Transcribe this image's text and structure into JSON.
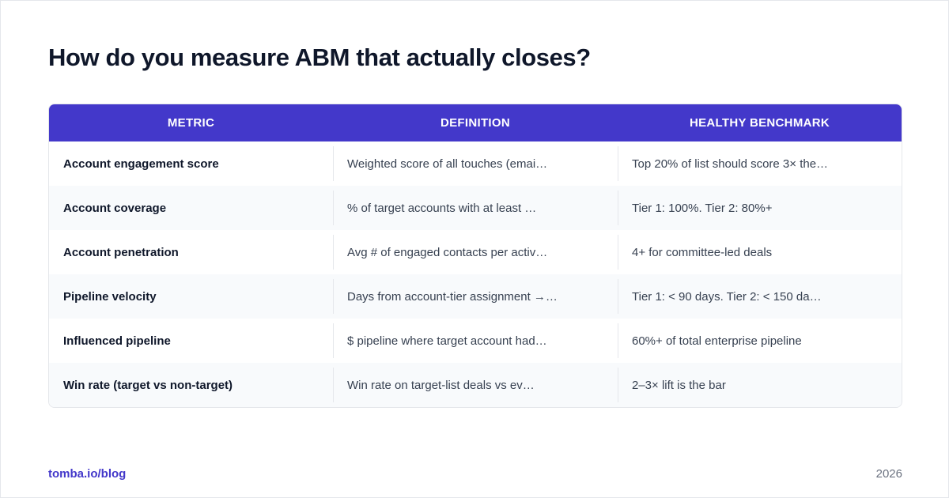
{
  "title": "How do you measure ABM that actually closes?",
  "table": {
    "headers": [
      "METRIC",
      "DEFINITION",
      "HEALTHY BENCHMARK"
    ],
    "rows": [
      [
        "Account engagement score",
        "Weighted score of all touches (emai…",
        "Top 20% of list should score 3× the…"
      ],
      [
        "Account coverage",
        "% of target accounts with at least …",
        "Tier 1: 100%. Tier 2: 80%+"
      ],
      [
        "Account penetration",
        "Avg # of engaged contacts per activ…",
        "4+ for committee-led deals"
      ],
      [
        "Pipeline velocity",
        "Days from account-tier assignment →…",
        "Tier 1: < 90 days. Tier 2: < 150 da…"
      ],
      [
        "Influenced pipeline",
        "$ pipeline where target account had…",
        "60%+ of total enterprise pipeline"
      ],
      [
        "Win rate (target vs non-target)",
        "Win rate on target-list deals vs ev…",
        "2–3× lift is the bar"
      ]
    ]
  },
  "footer": {
    "link": "tomba.io/blog",
    "year": "2026"
  },
  "colors": {
    "header_bg": "#4338ca",
    "alt_row_bg": "#f8fafc",
    "link": "#4338ca"
  }
}
